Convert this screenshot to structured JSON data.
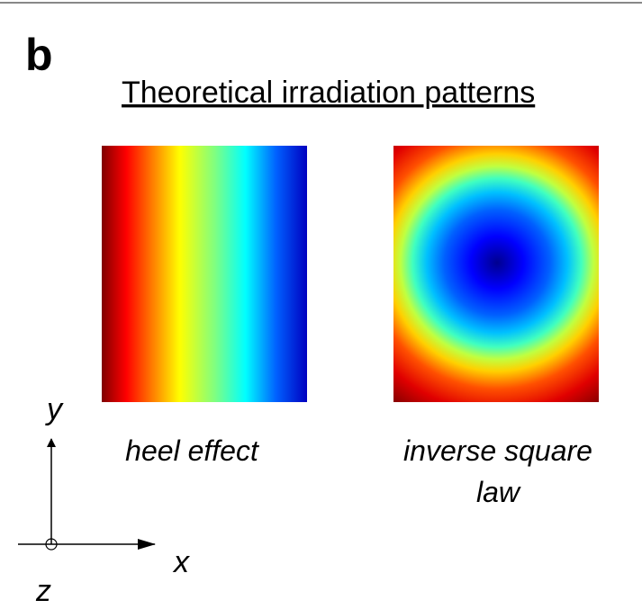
{
  "label": "b",
  "title": "Theoretical irradiation patterns",
  "panels": [
    {
      "caption_lines": [
        "heel effect"
      ]
    },
    {
      "caption_lines": [
        "inverse square",
        "law"
      ]
    }
  ],
  "axes": {
    "y": "y",
    "x": "x",
    "z": "z"
  }
}
